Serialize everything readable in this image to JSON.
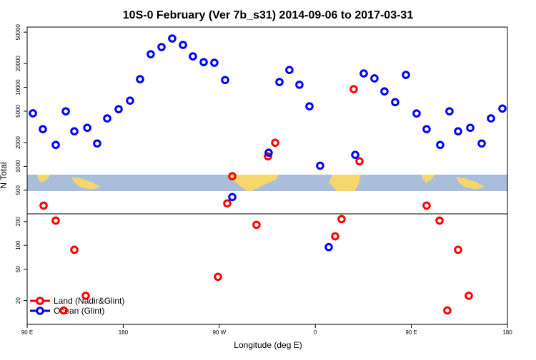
{
  "chart_data": {
    "type": "scatter",
    "title": "10S-0 February (Ver 7b_s31)   2014-09-06 to 2017-03-31",
    "x_label": "Longitude (deg E)",
    "y_label": "N Total",
    "xlim": [
      90,
      540
    ],
    "ylim": [
      10,
      58000
    ],
    "log_y": true,
    "xticks": [
      {
        "value": 90,
        "label": "90 E"
      },
      180,
      {
        "value": 270,
        "label": "90 W"
      },
      {
        "value": 360,
        "label": "0"
      },
      {
        "value": 450,
        "label": "90 E"
      },
      {
        "value": 540,
        "label": "180"
      }
    ],
    "yticks": [
      20,
      50,
      100,
      200,
      500,
      1000,
      2000,
      5000,
      10000,
      20000,
      50000
    ],
    "legend": "bottom-left",
    "series": [
      {
        "name": "Land (Nadir&Glint)",
        "color": "#ff0000",
        "x": [
          105.4,
          116.8,
          124.2,
          134.2,
          144.9,
          268.8,
          277.5,
          282.2,
          304.9,
          315.7,
          322.4,
          378.6,
          384.6,
          396.0,
          401.4,
          464.3,
          476.4,
          483.7,
          493.8,
          503.8
        ],
        "values": [
          319,
          206,
          15,
          88,
          23,
          40,
          340,
          750,
          182,
          1340,
          1990,
          130,
          215,
          9500,
          1160,
          319,
          206,
          15,
          88,
          23
        ]
      },
      {
        "name": "Ocean (Glint)",
        "color": "#0000ff",
        "x": [
          95.4,
          104.7,
          116.8,
          126.2,
          134.2,
          146.3,
          155.6,
          165.0,
          175.7,
          186.4,
          195.8,
          205.8,
          215.9,
          225.9,
          236.0,
          245.3,
          255.4,
          265.4,
          275.5,
          282.2,
          316.3,
          326.4,
          335.7,
          345.1,
          354.5,
          364.5,
          372.6,
          397.4,
          405.4,
          415.4,
          424.8,
          434.8,
          444.9,
          454.9,
          464.3,
          477.0,
          485.7,
          493.8,
          505.2,
          515.9,
          524.6,
          535.3
        ],
        "values": [
          4700,
          2960,
          1870,
          4980,
          2780,
          3080,
          1950,
          4050,
          5300,
          6800,
          12700,
          26300,
          32400,
          41600,
          34500,
          24700,
          20900,
          20500,
          12400,
          409,
          1490,
          11700,
          16600,
          10800,
          5760,
          1020,
          95,
          1400,
          15000,
          13000,
          8900,
          6500,
          14400,
          4680,
          2960,
          1870,
          4980,
          2780,
          3080,
          1950,
          4050,
          5400
        ]
      }
    ]
  }
}
